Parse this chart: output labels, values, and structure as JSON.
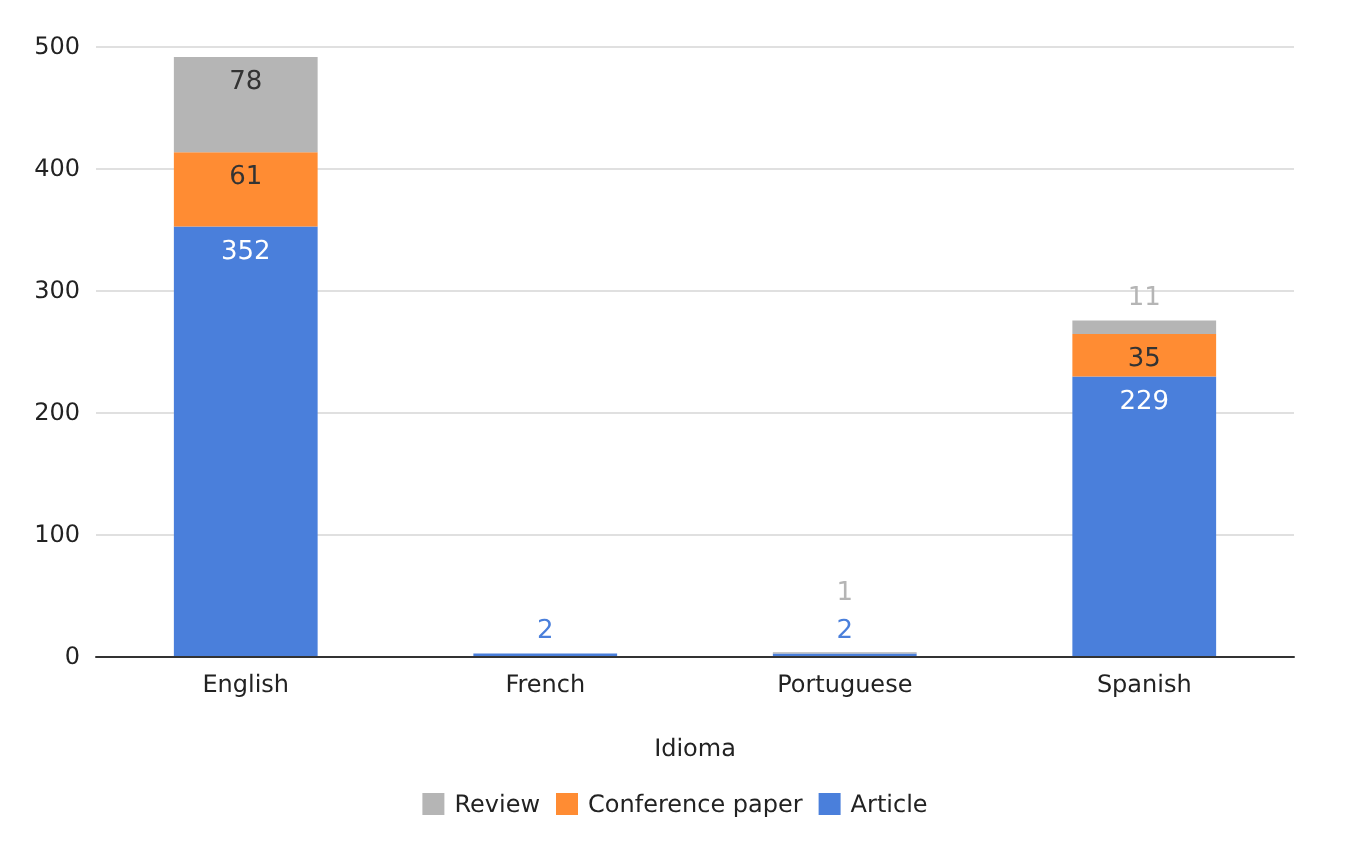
{
  "chart_data": {
    "type": "bar",
    "stacked": true,
    "xlabel": "Idioma",
    "categories": [
      "English",
      "French",
      "Portuguese",
      "Spanish"
    ],
    "series": [
      {
        "name": "Article",
        "color": "#4a7fdb",
        "values": [
          352,
          2,
          2,
          229
        ]
      },
      {
        "name": "Conference paper",
        "color": "#ff8c33",
        "values": [
          61,
          null,
          null,
          35
        ]
      },
      {
        "name": "Review",
        "color": "#b5b5b5",
        "values": [
          78,
          null,
          1,
          11
        ]
      }
    ],
    "ylim": [
      0,
      500
    ],
    "yticks": [
      0,
      100,
      200,
      300,
      400,
      500
    ],
    "grid": "y",
    "legend": "bottom",
    "data_labels": true
  }
}
